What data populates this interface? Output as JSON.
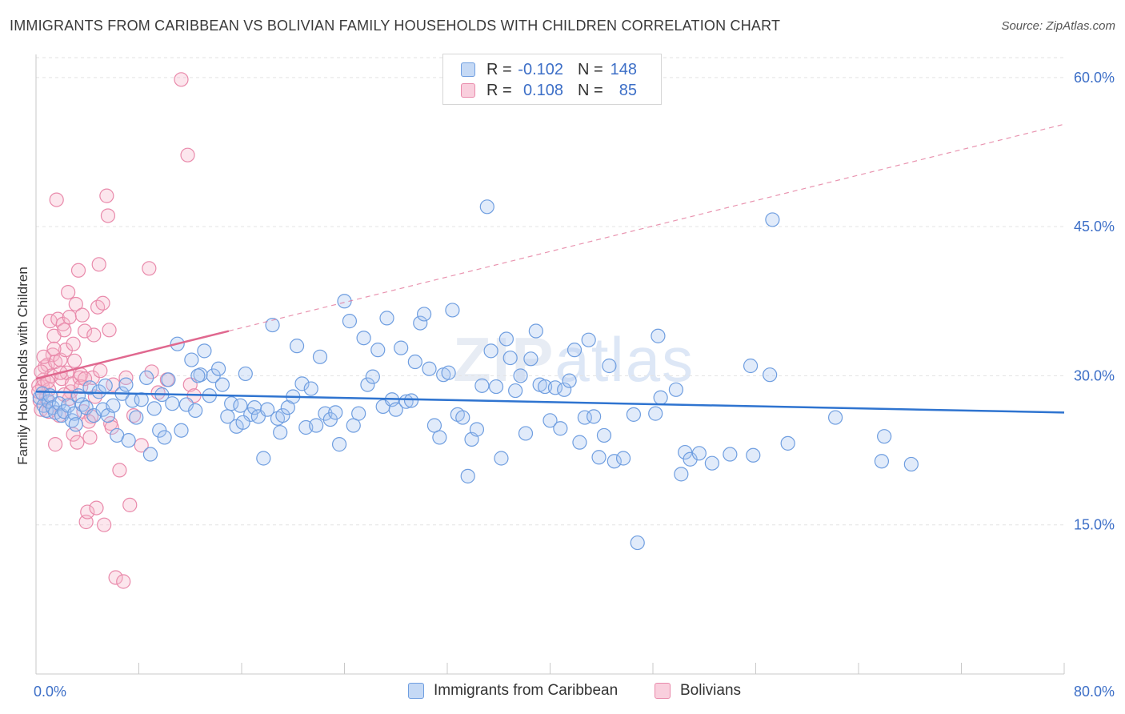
{
  "header": {
    "title": "IMMIGRANTS FROM CARIBBEAN VS BOLIVIAN FAMILY HOUSEHOLDS WITH CHILDREN CORRELATION CHART",
    "source": "Source: ZipAtlas.com"
  },
  "watermark": {
    "zip": "ZIP",
    "atlas": "atlas"
  },
  "legend": {
    "rows": [
      {
        "r_label": "R =",
        "r_value": "-0.102",
        "n_label": "N =",
        "n_value": "148",
        "color": "#a9c6f0",
        "border": "#6f9ee0"
      },
      {
        "r_label": "R =",
        "r_value": "0.108",
        "n_label": "N =",
        "n_value": "85",
        "color": "#f7b6cc",
        "border": "#e98aab"
      }
    ]
  },
  "bottom_legend": {
    "caribbean": "Immigrants from Caribbean",
    "bolivians": "Bolivians"
  },
  "chart_data": {
    "type": "scatter",
    "title": "IMMIGRANTS FROM CARIBBEAN VS BOLIVIAN FAMILY HOUSEHOLDS WITH CHILDREN CORRELATION CHART",
    "xlabel": "",
    "ylabel": "Family Households with Children",
    "xlim": [
      0,
      80
    ],
    "ylim": [
      0,
      62
    ],
    "x_tick_labels": [
      "0.0%",
      "80.0%"
    ],
    "y_ticks": [
      15,
      30,
      45,
      60
    ],
    "y_tick_labels": [
      "15.0%",
      "30.0%",
      "45.0%",
      "60.0%"
    ],
    "grid": true,
    "legend_position": "top-center",
    "colors": {
      "caribbean_fill": "rgba(169,198,240,0.35)",
      "caribbean_stroke": "#6f9ee0",
      "caribbean_line": "#2f74d0",
      "bolivian_fill": "rgba(247,182,204,0.35)",
      "bolivian_stroke": "#e98aab",
      "bolivian_line": "#e0688f"
    },
    "series": [
      {
        "name": "Immigrants from Caribbean",
        "trend": {
          "x": [
            0,
            80
          ],
          "y": [
            28.4,
            26.3
          ],
          "dashed": false
        },
        "points": [
          [
            0.3,
            27.8
          ],
          [
            0.5,
            28.2
          ],
          [
            0.6,
            27.0
          ],
          [
            0.8,
            26.5
          ],
          [
            1.0,
            27.4
          ],
          [
            1.1,
            28.0
          ],
          [
            1.3,
            26.8
          ],
          [
            1.5,
            26.3
          ],
          [
            1.8,
            27.2
          ],
          [
            2.0,
            26.0
          ],
          [
            2.2,
            26.4
          ],
          [
            2.5,
            27.0
          ],
          [
            2.8,
            25.5
          ],
          [
            3.0,
            26.2
          ],
          [
            3.3,
            28.0
          ],
          [
            3.6,
            27.1
          ],
          [
            3.9,
            26.8
          ],
          [
            4.2,
            28.8
          ],
          [
            4.5,
            26.0
          ],
          [
            4.9,
            28.4
          ],
          [
            5.2,
            26.6
          ],
          [
            5.6,
            26.0
          ],
          [
            6.0,
            27.0
          ],
          [
            6.3,
            24.0
          ],
          [
            6.7,
            28.2
          ],
          [
            7.0,
            29.1
          ],
          [
            7.5,
            27.5
          ],
          [
            7.8,
            25.8
          ],
          [
            8.2,
            27.6
          ],
          [
            8.6,
            29.8
          ],
          [
            8.9,
            22.1
          ],
          [
            9.2,
            26.7
          ],
          [
            9.6,
            24.5
          ],
          [
            10.0,
            23.8
          ],
          [
            10.3,
            29.6
          ],
          [
            10.6,
            27.2
          ],
          [
            11.0,
            33.2
          ],
          [
            11.3,
            24.5
          ],
          [
            11.7,
            27.1
          ],
          [
            12.1,
            31.6
          ],
          [
            12.4,
            26.5
          ],
          [
            12.8,
            30.1
          ],
          [
            13.1,
            32.5
          ],
          [
            13.5,
            28.0
          ],
          [
            13.8,
            30.0
          ],
          [
            14.2,
            30.7
          ],
          [
            14.5,
            29.1
          ],
          [
            14.9,
            25.9
          ],
          [
            15.2,
            27.2
          ],
          [
            15.6,
            24.9
          ],
          [
            15.9,
            27.0
          ],
          [
            16.3,
            30.2
          ],
          [
            16.7,
            26.1
          ],
          [
            17.0,
            26.8
          ],
          [
            17.3,
            25.9
          ],
          [
            17.7,
            21.7
          ],
          [
            18.0,
            26.6
          ],
          [
            18.4,
            35.1
          ],
          [
            18.8,
            25.7
          ],
          [
            19.2,
            26.0
          ],
          [
            19.6,
            26.8
          ],
          [
            20.0,
            27.9
          ],
          [
            20.3,
            33.0
          ],
          [
            20.7,
            29.2
          ],
          [
            21.0,
            24.8
          ],
          [
            21.4,
            28.7
          ],
          [
            21.8,
            25.0
          ],
          [
            22.1,
            31.9
          ],
          [
            22.5,
            26.2
          ],
          [
            22.9,
            25.6
          ],
          [
            23.3,
            26.3
          ],
          [
            23.6,
            23.1
          ],
          [
            24.0,
            37.5
          ],
          [
            24.4,
            35.5
          ],
          [
            24.7,
            25.0
          ],
          [
            25.1,
            26.2
          ],
          [
            25.5,
            33.8
          ],
          [
            25.8,
            29.1
          ],
          [
            26.2,
            29.9
          ],
          [
            26.6,
            32.6
          ],
          [
            27.0,
            26.9
          ],
          [
            27.3,
            35.8
          ],
          [
            27.7,
            27.6
          ],
          [
            28.0,
            26.6
          ],
          [
            28.4,
            32.8
          ],
          [
            28.8,
            27.4
          ],
          [
            29.2,
            27.5
          ],
          [
            29.5,
            31.4
          ],
          [
            29.9,
            35.3
          ],
          [
            30.2,
            36.2
          ],
          [
            30.6,
            30.7
          ],
          [
            31.0,
            25.0
          ],
          [
            31.4,
            23.8
          ],
          [
            31.7,
            30.1
          ],
          [
            32.1,
            30.3
          ],
          [
            32.4,
            36.6
          ],
          [
            32.8,
            26.1
          ],
          [
            33.2,
            25.8
          ],
          [
            33.6,
            19.9
          ],
          [
            33.9,
            23.6
          ],
          [
            34.3,
            24.6
          ],
          [
            34.7,
            29.0
          ],
          [
            35.1,
            47.0
          ],
          [
            35.4,
            32.5
          ],
          [
            35.8,
            28.9
          ],
          [
            36.2,
            21.7
          ],
          [
            36.6,
            33.7
          ],
          [
            36.9,
            31.8
          ],
          [
            37.3,
            28.5
          ],
          [
            37.7,
            30.0
          ],
          [
            38.1,
            24.2
          ],
          [
            38.5,
            31.7
          ],
          [
            38.9,
            34.5
          ],
          [
            39.2,
            29.1
          ],
          [
            39.6,
            28.9
          ],
          [
            40.0,
            25.5
          ],
          [
            40.4,
            28.8
          ],
          [
            40.8,
            24.7
          ],
          [
            41.1,
            28.6
          ],
          [
            41.5,
            29.5
          ],
          [
            41.9,
            32.6
          ],
          [
            42.3,
            23.3
          ],
          [
            42.7,
            25.8
          ],
          [
            43.0,
            33.6
          ],
          [
            43.4,
            25.9
          ],
          [
            43.8,
            21.8
          ],
          [
            44.2,
            24.0
          ],
          [
            44.6,
            31.0
          ],
          [
            45.0,
            21.4
          ],
          [
            45.7,
            21.7
          ],
          [
            46.5,
            26.1
          ],
          [
            46.8,
            13.2
          ],
          [
            48.2,
            26.2
          ],
          [
            48.4,
            34.0
          ],
          [
            48.6,
            27.8
          ],
          [
            49.8,
            28.6
          ],
          [
            50.2,
            20.1
          ],
          [
            50.5,
            22.3
          ],
          [
            50.9,
            21.6
          ],
          [
            51.6,
            22.2
          ],
          [
            52.6,
            21.2
          ],
          [
            54.0,
            22.1
          ],
          [
            55.6,
            31.0
          ],
          [
            55.8,
            22.0
          ],
          [
            57.1,
            30.1
          ],
          [
            57.3,
            45.7
          ],
          [
            58.5,
            23.2
          ],
          [
            62.2,
            25.8
          ],
          [
            65.8,
            21.4
          ],
          [
            66.0,
            23.9
          ],
          [
            68.1,
            21.1
          ],
          [
            12.6,
            30.0
          ],
          [
            16.1,
            25.3
          ],
          [
            19.0,
            24.3
          ],
          [
            9.8,
            28.1
          ],
          [
            7.2,
            23.5
          ],
          [
            5.4,
            29.0
          ],
          [
            3.1,
            25.1
          ]
        ]
      },
      {
        "name": "Bolivians",
        "trend": {
          "x": [
            0,
            15
          ],
          "y": [
            29.7,
            34.5
          ],
          "dashed": false,
          "extension": {
            "x": [
              15,
              80
            ],
            "y": [
              34.5,
              55.3
            ],
            "dashed": true
          }
        },
        "points": [
          [
            0.2,
            29.0
          ],
          [
            0.3,
            27.5
          ],
          [
            0.4,
            26.6
          ],
          [
            0.5,
            28.9
          ],
          [
            0.6,
            29.6
          ],
          [
            0.7,
            30.9
          ],
          [
            0.8,
            27.8
          ],
          [
            0.9,
            31.1
          ],
          [
            1.0,
            28.6
          ],
          [
            1.1,
            35.5
          ],
          [
            1.2,
            30.0
          ],
          [
            1.3,
            32.1
          ],
          [
            1.4,
            34.0
          ],
          [
            1.5,
            31.4
          ],
          [
            1.5,
            23.1
          ],
          [
            1.6,
            47.7
          ],
          [
            1.7,
            35.7
          ],
          [
            1.8,
            26.0
          ],
          [
            1.9,
            31.6
          ],
          [
            2.0,
            29.7
          ],
          [
            2.1,
            35.2
          ],
          [
            2.2,
            34.6
          ],
          [
            2.3,
            32.6
          ],
          [
            2.4,
            30.3
          ],
          [
            2.5,
            38.4
          ],
          [
            2.6,
            35.9
          ],
          [
            2.7,
            28.4
          ],
          [
            2.8,
            29.2
          ],
          [
            2.9,
            24.1
          ],
          [
            3.0,
            31.5
          ],
          [
            3.1,
            37.2
          ],
          [
            3.2,
            23.3
          ],
          [
            3.3,
            40.6
          ],
          [
            3.4,
            29.8
          ],
          [
            3.5,
            30.1
          ],
          [
            3.6,
            36.1
          ],
          [
            3.7,
            26.4
          ],
          [
            3.8,
            34.5
          ],
          [
            3.9,
            15.3
          ],
          [
            4.0,
            16.3
          ],
          [
            4.2,
            23.8
          ],
          [
            4.3,
            25.9
          ],
          [
            4.4,
            29.8
          ],
          [
            4.5,
            34.1
          ],
          [
            4.6,
            27.9
          ],
          [
            4.7,
            16.7
          ],
          [
            4.8,
            36.9
          ],
          [
            4.9,
            41.2
          ],
          [
            5.0,
            30.5
          ],
          [
            5.2,
            37.3
          ],
          [
            5.3,
            15.0
          ],
          [
            5.5,
            48.1
          ],
          [
            5.6,
            46.1
          ],
          [
            5.7,
            34.6
          ],
          [
            5.8,
            25.2
          ],
          [
            5.9,
            24.8
          ],
          [
            6.0,
            29.1
          ],
          [
            6.2,
            9.7
          ],
          [
            6.5,
            20.5
          ],
          [
            6.8,
            9.3
          ],
          [
            7.0,
            29.8
          ],
          [
            7.3,
            17.0
          ],
          [
            7.6,
            26.0
          ],
          [
            8.2,
            23.0
          ],
          [
            8.8,
            40.8
          ],
          [
            9.0,
            30.4
          ],
          [
            9.5,
            28.3
          ],
          [
            10.2,
            29.6
          ],
          [
            11.3,
            59.8
          ],
          [
            11.8,
            52.2
          ],
          [
            12.0,
            29.1
          ],
          [
            12.3,
            28.0
          ],
          [
            0.6,
            31.9
          ],
          [
            1.0,
            26.4
          ],
          [
            1.9,
            30.3
          ],
          [
            2.6,
            27.7
          ],
          [
            3.5,
            28.9
          ],
          [
            4.1,
            25.4
          ],
          [
            0.2,
            28.4
          ],
          [
            0.9,
            29.4
          ],
          [
            1.4,
            32.7
          ],
          [
            2.2,
            28.1
          ],
          [
            2.9,
            33.2
          ],
          [
            3.8,
            29.7
          ],
          [
            0.4,
            30.4
          ]
        ]
      }
    ]
  }
}
